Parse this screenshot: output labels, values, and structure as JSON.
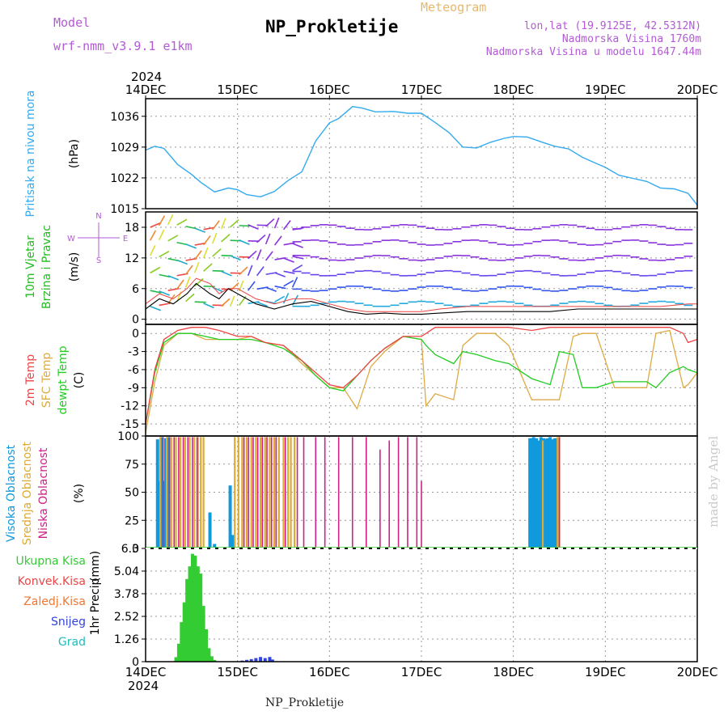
{
  "header": {
    "model_label": "Model",
    "model_name": "wrf-nmm_v3.9.1 e1km",
    "title": "NP_Prokletije",
    "meteogram_label": "Meteogram",
    "lonlat": "lon,lat (19.9125E, 42.5312N)",
    "altitude": "Nadmorska Visina 1760m",
    "model_altitude": "Nadmorska Visina u modelu 1647.44m"
  },
  "footer": {
    "station": "NP_Prokletije",
    "credit": "made by Angel"
  },
  "time_axis": {
    "year": "2024",
    "labels": [
      "14DEC",
      "15DEC",
      "16DEC",
      "17DEC",
      "18DEC",
      "19DEC",
      "20DEC"
    ]
  },
  "colors": {
    "pressure": "#33aaee",
    "wind_label": "#22bb22",
    "temp2m": "#ee4444",
    "sfc_temp": "#ddaa44",
    "dewpt": "#22cc22",
    "high_cloud": "#1199dd",
    "mid_cloud": "#ddaa33",
    "low_cloud": "#cc2288",
    "total_precip": "#33cc33",
    "conv_precip": "#ee4444",
    "frz_precip": "#ee7733",
    "snow": "#3344dd",
    "hail": "#22bbbb",
    "arrow_legend": "#b35ad6"
  },
  "chart_data": [
    {
      "type": "line",
      "title": "",
      "ylabel": "Pritisak na nivou mora",
      "unit": "(hPa)",
      "ylim": [
        1015,
        1040
      ],
      "yticks": [
        1015,
        1022,
        1029,
        1036
      ],
      "x_days": [
        0,
        0.1,
        0.2,
        0.35,
        0.5,
        0.6,
        0.75,
        0.9,
        1.0,
        1.1,
        1.25,
        1.4,
        1.55,
        1.7,
        1.85,
        2.0,
        2.1,
        2.25,
        2.35,
        2.5,
        2.7,
        2.85,
        3.0,
        3.15,
        3.3,
        3.45,
        3.6,
        3.75,
        3.9,
        4.0,
        4.15,
        4.3,
        4.45,
        4.6,
        4.75,
        4.9,
        5.0,
        5.15,
        5.3,
        5.45,
        5.6,
        5.75,
        5.9,
        6.0
      ],
      "series": [
        {
          "values": [
            1028.3,
            1029.2,
            1028.7,
            1025.0,
            1022.8,
            1021.0,
            1018.8,
            1019.7,
            1019.3,
            1018.2,
            1017.7,
            1018.9,
            1021.4,
            1023.4,
            1030.4,
            1034.5,
            1035.5,
            1038.2,
            1037.9,
            1037.0,
            1037.1,
            1036.7,
            1036.7,
            1034.6,
            1032.3,
            1029.0,
            1028.8,
            1030.1,
            1031.0,
            1031.4,
            1031.3,
            1030.2,
            1029.2,
            1028.6,
            1026.7,
            1025.3,
            1024.4,
            1022.6,
            1021.9,
            1021.2,
            1019.7,
            1019.5,
            1018.5,
            1015.8
          ]
        }
      ]
    },
    {
      "type": "line",
      "title": "",
      "ylabel": "10m Vjetar Brzina i Pravac",
      "unit": "(m/s)",
      "ylim": [
        -1,
        21
      ],
      "yticks": [
        0,
        6,
        12,
        18
      ],
      "legend": [
        "N",
        "W",
        "E",
        "S"
      ],
      "x_days": [
        0,
        0.15,
        0.3,
        0.45,
        0.55,
        0.7,
        0.8,
        0.9,
        1.0,
        1.2,
        1.4,
        1.6,
        1.8,
        2.0,
        2.2,
        2.4,
        2.6,
        2.8,
        3.0,
        3.2,
        3.5,
        3.8,
        4.1,
        4.4,
        4.7,
        5.0,
        5.3,
        5.6,
        5.9,
        6.0
      ],
      "series": [
        {
          "name": "speed",
          "values": [
            2,
            4,
            3,
            5,
            7,
            5,
            4,
            6,
            5,
            3,
            2,
            3,
            3.5,
            2.5,
            1.5,
            1,
            1.2,
            1,
            1,
            1.2,
            1.5,
            1.5,
            1.5,
            1.5,
            2,
            2,
            2,
            2,
            2,
            2
          ]
        },
        {
          "name": "gust",
          "values": [
            3,
            5,
            4,
            6,
            8,
            7,
            5,
            6,
            6,
            4,
            3,
            4,
            4,
            3,
            2,
            1.5,
            1.5,
            1.5,
            1.5,
            2,
            2.5,
            2.5,
            2.5,
            2.5,
            2.5,
            2.5,
            2.5,
            2.5,
            3,
            3
          ]
        }
      ]
    },
    {
      "type": "line",
      "title": "",
      "ylabel": "2m Temp / SFC Temp / dewpt Temp",
      "unit": "(C)",
      "ylim": [
        -17,
        1.5
      ],
      "yticks": [
        0,
        -3,
        -6,
        -9,
        -12,
        -15
      ],
      "x_days": [
        0,
        0.1,
        0.2,
        0.35,
        0.5,
        0.65,
        0.8,
        1.0,
        1.15,
        1.3,
        1.5,
        1.7,
        1.85,
        2.0,
        2.15,
        2.3,
        2.45,
        2.6,
        2.8,
        3.0,
        3.05,
        3.15,
        3.35,
        3.45,
        3.6,
        3.8,
        3.95,
        4.2,
        4.4,
        4.5,
        4.65,
        4.75,
        4.9,
        5.1,
        5.3,
        5.45,
        5.55,
        5.7,
        5.85,
        5.9,
        6.0
      ],
      "series": [
        {
          "name": "2m Temp",
          "values": [
            -15,
            -6,
            -1,
            0.5,
            1,
            1,
            0.5,
            -0.5,
            -0.5,
            -1.5,
            -2,
            -4.5,
            -6.5,
            -8.5,
            -9,
            -7,
            -4.5,
            -2.5,
            -0.5,
            -0.5,
            0,
            1,
            1,
            1,
            1,
            1,
            1,
            0.5,
            1,
            1,
            1,
            1,
            1,
            1,
            1,
            1,
            1,
            1,
            0,
            -1.5,
            -1
          ]
        },
        {
          "name": "SFC Temp",
          "values": [
            -16.5,
            -8,
            -2,
            0,
            0,
            -1,
            -1,
            -1,
            -0.5,
            -1.5,
            -2,
            -5,
            -7,
            -9,
            -9,
            -12.5,
            -5.5,
            -3,
            -0.5,
            -1,
            -12,
            -10,
            -11,
            -2,
            0,
            0,
            -2,
            -11,
            -11,
            -11,
            -0.5,
            0,
            0,
            -9,
            -9,
            -9,
            0,
            0.5,
            -9,
            -8.5,
            -6.5
          ]
        },
        {
          "name": "dewpt Temp",
          "values": [
            -15,
            -6.5,
            -1.5,
            0,
            0,
            -0.5,
            -1,
            -1,
            -1,
            -1.5,
            -2.5,
            -4.5,
            -7,
            -9,
            -9.5,
            -7,
            -4.5,
            -2.5,
            -0.5,
            -1,
            -2,
            -3.5,
            -5,
            -3,
            -3.5,
            -4.5,
            -5,
            -7.5,
            -8.5,
            -3,
            -3.5,
            -9,
            -9,
            -8,
            -8,
            -8,
            -9,
            -6.5,
            -5.5,
            -6,
            -6.5
          ]
        }
      ]
    },
    {
      "type": "bar",
      "title": "",
      "ylabel": "Visoka Oblacnost / Srednja Oblacnost / Niska Oblacnost",
      "unit": "(%)",
      "ylim": [
        0,
        100
      ],
      "yticks": [
        0,
        25,
        50,
        75,
        100
      ],
      "series": [
        {
          "name": "Visoka Oblacnost",
          "x_days": [
            0.13,
            0.15,
            0.18,
            0.2,
            0.22,
            0.25,
            0.7,
            0.75,
            0.92,
            0.95,
            4.18,
            4.2,
            4.22,
            4.25,
            4.28,
            4.3,
            4.33,
            4.35,
            4.37,
            4.4,
            4.43,
            4.45,
            4.47
          ],
          "values": [
            97,
            60,
            99,
            60,
            98,
            99,
            32,
            4,
            56,
            12,
            98,
            98,
            99,
            98,
            96,
            99,
            98,
            97,
            98,
            99,
            97,
            98,
            98
          ]
        },
        {
          "name": "Srednja Oblacnost",
          "x_days": [
            0.16,
            0.23,
            0.28,
            0.33,
            0.38,
            0.43,
            0.48,
            0.53,
            0.57,
            0.6,
            0.63,
            0.97,
            1.01,
            1.05,
            1.1,
            1.15,
            1.2,
            1.25,
            1.3,
            1.35,
            1.4,
            1.45,
            1.5,
            1.55,
            1.58,
            1.62,
            4.32,
            4.48,
            4.5
          ],
          "values": [
            99,
            99,
            99,
            99,
            99,
            99,
            99,
            99,
            99,
            99,
            99,
            99,
            99,
            99,
            99,
            99,
            99,
            99,
            99,
            99,
            99,
            99,
            99,
            99,
            99,
            99,
            96,
            99,
            99
          ]
        },
        {
          "name": "Niska Oblacnost",
          "x_days": [
            0.19,
            0.26,
            0.31,
            0.36,
            0.41,
            0.46,
            0.51,
            0.56,
            1.07,
            1.12,
            1.17,
            1.22,
            1.27,
            1.32,
            1.37,
            1.42,
            1.52,
            1.65,
            1.72,
            1.85,
            1.95,
            2.1,
            2.25,
            2.4,
            2.55,
            2.65,
            2.75,
            2.85,
            2.95,
            3.0,
            4.5
          ],
          "values": [
            99,
            99,
            99,
            99,
            99,
            99,
            99,
            99,
            99,
            99,
            99,
            99,
            99,
            99,
            99,
            99,
            99,
            99,
            99,
            99,
            99,
            99,
            99,
            99,
            88,
            96,
            99,
            99,
            99,
            60,
            99
          ]
        }
      ]
    },
    {
      "type": "bar",
      "title": "",
      "ylabel": "1hr Precip",
      "unit": "(mm)",
      "ylim": [
        0,
        6.3
      ],
      "yticks": [
        0,
        1.26,
        2.52,
        3.78,
        5.04,
        6.3
      ],
      "legend": [
        "Ukupna Kisa",
        "Konvek.Kisa",
        "Zaledj.Kisa",
        "Snijeg",
        "Grad"
      ],
      "series": [
        {
          "name": "Ukupna Kisa",
          "x_days": [
            0.33,
            0.36,
            0.39,
            0.42,
            0.45,
            0.48,
            0.51,
            0.54,
            0.57,
            0.6,
            0.63,
            0.66,
            0.69,
            0.72,
            0.75
          ],
          "values": [
            0.25,
            1.0,
            2.2,
            3.3,
            4.6,
            5.3,
            6.0,
            5.9,
            5.3,
            4.9,
            3.1,
            1.8,
            0.75,
            0.3,
            0.1
          ]
        },
        {
          "name": "Snijeg",
          "x_days": [
            1.05,
            1.1,
            1.15,
            1.2,
            1.25,
            1.3,
            1.35,
            1.38
          ],
          "values": [
            0.06,
            0.1,
            0.14,
            0.2,
            0.26,
            0.2,
            0.26,
            0.12
          ]
        }
      ]
    }
  ]
}
